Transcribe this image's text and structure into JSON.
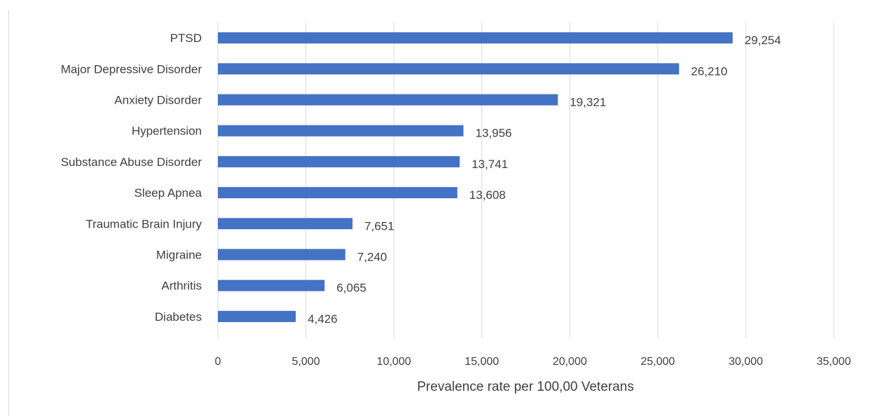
{
  "chart_data": {
    "type": "bar",
    "orientation": "horizontal",
    "title": "",
    "xlabel": "Prevalence rate per 100,00 Veterans",
    "ylabel": "",
    "xlim": [
      0,
      35000
    ],
    "xticks": [
      0,
      5000,
      10000,
      15000,
      20000,
      25000,
      30000,
      35000
    ],
    "xtick_labels": [
      "0",
      "5,000",
      "10,000",
      "15,000",
      "20,000",
      "25,000",
      "30,000",
      "35,000"
    ],
    "grid": "vertical lines",
    "legend": "none",
    "bar_color": "#4472c4",
    "categories": [
      "PTSD",
      "Major Depressive Disorder",
      "Anxiety Disorder",
      "Hypertension",
      "Substance Abuse Disorder",
      "Sleep Apnea",
      "Traumatic Brain Injury",
      "Migraine",
      "Arthritis",
      "Diabetes"
    ],
    "values": [
      29254,
      26210,
      19321,
      13956,
      13741,
      13608,
      7651,
      7240,
      6065,
      4426
    ],
    "value_labels": [
      "29,254",
      "26,210",
      "19,321",
      "13,956",
      "13,741",
      "13,608",
      "7,651",
      "7,240",
      "6,065",
      "4,426"
    ]
  }
}
